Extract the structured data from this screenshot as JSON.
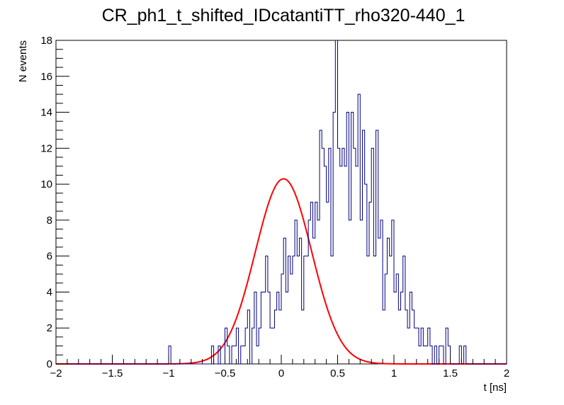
{
  "chart_data": {
    "type": "histogram",
    "title": "CR_ph1_t_shifted_IDcatantiTT_rho320-440_1",
    "xlabel": "t [ns]",
    "ylabel": "N events",
    "xlim": [
      -2,
      2
    ],
    "ylim": [
      0,
      18
    ],
    "x_ticks": [
      -2,
      -1.5,
      -1,
      -0.5,
      0,
      0.5,
      1,
      1.5,
      2
    ],
    "x_tick_labels": [
      "−2",
      "−1.5",
      "−1",
      "−0.5",
      "0",
      "0.5",
      "1",
      "1.5",
      "2"
    ],
    "y_ticks": [
      0,
      2,
      4,
      6,
      8,
      10,
      12,
      14,
      16,
      18
    ],
    "y_tick_labels": [
      "0",
      "2",
      "4",
      "6",
      "8",
      "10",
      "12",
      "14",
      "16",
      "18"
    ],
    "bin_width": 0.02,
    "bins_start": -1.0,
    "counts": [
      1,
      0,
      0,
      0,
      0,
      0,
      0,
      0,
      0,
      0,
      0,
      0,
      0,
      0,
      0,
      0,
      0,
      0,
      0,
      1,
      0,
      0,
      1,
      0,
      0,
      2,
      1,
      0,
      1,
      1,
      2,
      0,
      1,
      1,
      2,
      3,
      0,
      2,
      4,
      1,
      2,
      4,
      4,
      6,
      4,
      2,
      2,
      3,
      4,
      3,
      5,
      7,
      4,
      6,
      5,
      6,
      8,
      6,
      7,
      3,
      6,
      6,
      8,
      9,
      7,
      9,
      8,
      13,
      12,
      11,
      9,
      12,
      6,
      14,
      18,
      12,
      11,
      12,
      11,
      14,
      8,
      14,
      12,
      11,
      15,
      8,
      13,
      10,
      6,
      9,
      12,
      6,
      13,
      7,
      8,
      3,
      5,
      7,
      6,
      8,
      4,
      5,
      3,
      4,
      6,
      3,
      2,
      4,
      3,
      2,
      2,
      1,
      2,
      1,
      1,
      2,
      1,
      0,
      1,
      0,
      1,
      1,
      0,
      2,
      1,
      0,
      0,
      0,
      0,
      1,
      0,
      1,
      0,
      0,
      0,
      0,
      0,
      0
    ],
    "fit": {
      "function": "gaussian",
      "amplitude": 10.3,
      "mean": 0.02,
      "sigma": 0.25,
      "color": "#ff0000"
    },
    "histogram_color": "#000080",
    "grid": false,
    "legend": "none"
  }
}
